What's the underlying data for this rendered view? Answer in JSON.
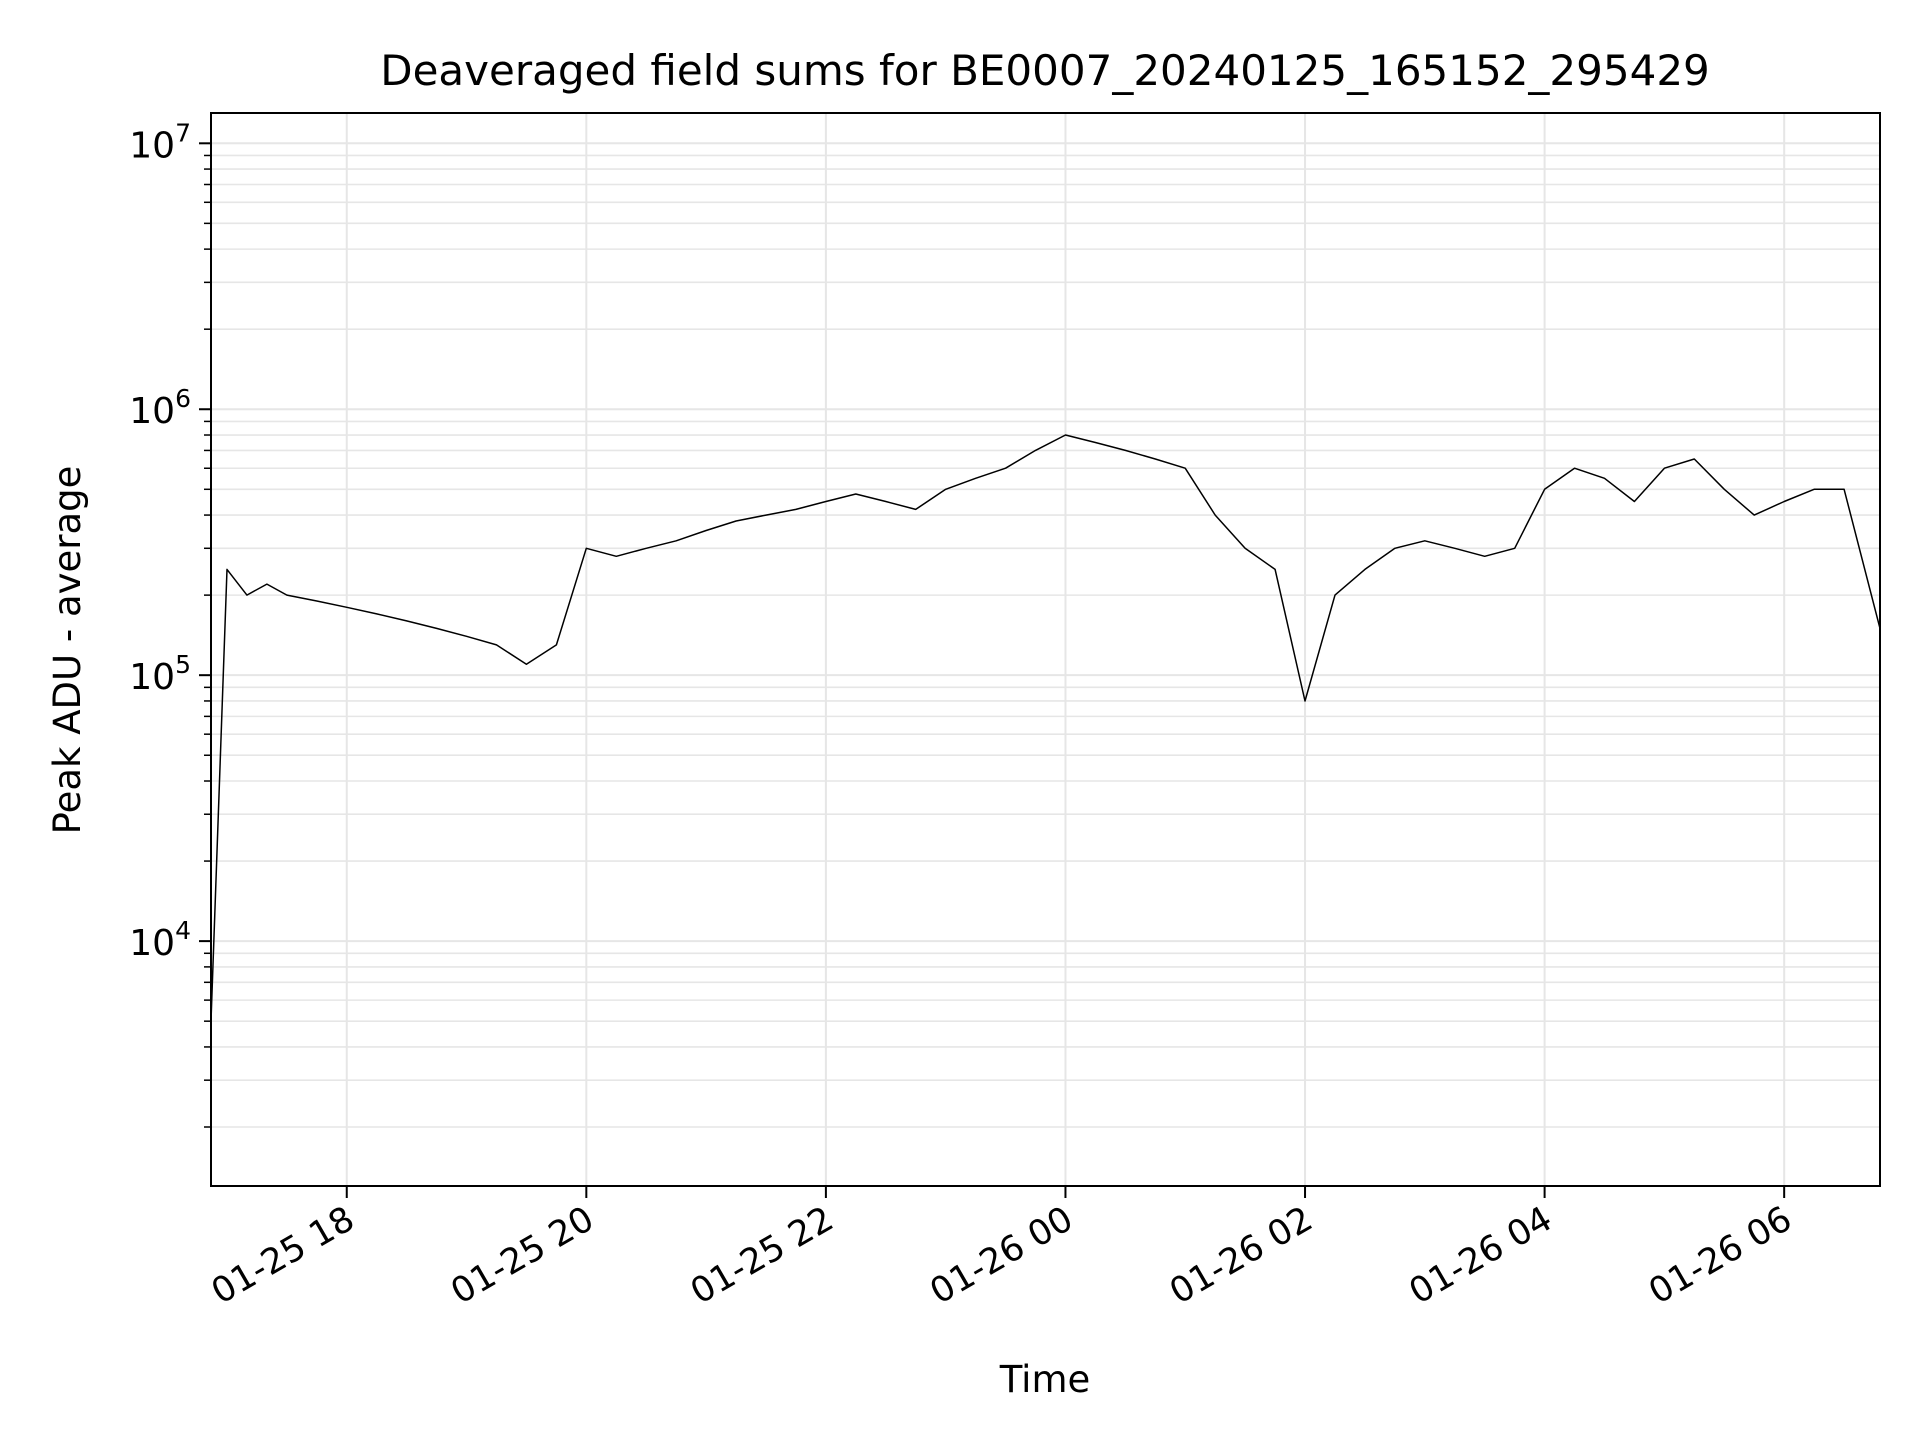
{
  "chart_data": {
    "type": "line",
    "title": "Deaveraged field sums for BE0007_20240125_165152_295429",
    "xlabel": "Time",
    "ylabel": "Peak ADU - average",
    "yscale": "log",
    "ylim": [
      1200,
      13000000
    ],
    "xlim": [
      "2024-01-25 16:52",
      "2024-01-26 06:48"
    ],
    "grid": true,
    "line_color": "#000000",
    "grid_color": "#e6e6e6",
    "x_ticks": [
      {
        "value": "2024-01-25 18:00",
        "label": "01-25 18"
      },
      {
        "value": "2024-01-25 20:00",
        "label": "01-25 20"
      },
      {
        "value": "2024-01-25 22:00",
        "label": "01-25 22"
      },
      {
        "value": "2024-01-26 00:00",
        "label": "01-26 00"
      },
      {
        "value": "2024-01-26 02:00",
        "label": "01-26 02"
      },
      {
        "value": "2024-01-26 04:00",
        "label": "01-26 04"
      },
      {
        "value": "2024-01-26 06:00",
        "label": "01-26 06"
      }
    ],
    "y_ticks": [
      {
        "value": 10000,
        "label": "10",
        "exp": "4"
      },
      {
        "value": 100000,
        "label": "10",
        "exp": "5"
      },
      {
        "value": 1000000,
        "label": "10",
        "exp": "6"
      },
      {
        "value": 10000000,
        "label": "10",
        "exp": "7"
      }
    ],
    "series": [
      {
        "x": [
          "2024-01-25 16:52",
          "2024-01-25 17:00",
          "2024-01-25 17:10",
          "2024-01-25 17:20",
          "2024-01-25 17:30",
          "2024-01-25 17:45",
          "2024-01-25 18:00",
          "2024-01-25 18:15",
          "2024-01-25 18:30",
          "2024-01-25 18:45",
          "2024-01-25 19:00",
          "2024-01-25 19:15",
          "2024-01-25 19:30",
          "2024-01-25 19:45",
          "2024-01-25 20:00",
          "2024-01-25 20:15",
          "2024-01-25 20:30",
          "2024-01-25 20:45",
          "2024-01-25 21:00",
          "2024-01-25 21:15",
          "2024-01-25 21:30",
          "2024-01-25 21:45",
          "2024-01-25 22:00",
          "2024-01-25 22:15",
          "2024-01-25 22:30",
          "2024-01-25 22:45",
          "2024-01-25 23:00",
          "2024-01-25 23:15",
          "2024-01-25 23:30",
          "2024-01-25 23:45",
          "2024-01-26 00:00",
          "2024-01-26 00:15",
          "2024-01-26 00:30",
          "2024-01-26 00:45",
          "2024-01-26 01:00",
          "2024-01-26 01:15",
          "2024-01-26 01:30",
          "2024-01-26 01:45",
          "2024-01-26 02:00",
          "2024-01-26 02:15",
          "2024-01-26 02:30",
          "2024-01-26 02:45",
          "2024-01-26 03:00",
          "2024-01-26 03:15",
          "2024-01-26 03:30",
          "2024-01-26 03:45",
          "2024-01-26 04:00",
          "2024-01-26 04:15",
          "2024-01-26 04:30",
          "2024-01-26 04:45",
          "2024-01-26 05:00",
          "2024-01-26 05:15",
          "2024-01-26 05:30",
          "2024-01-26 05:45",
          "2024-01-26 06:00",
          "2024-01-26 06:15",
          "2024-01-26 06:30",
          "2024-01-26 06:48"
        ],
        "values": [
          5000,
          250000,
          200000,
          220000,
          200000,
          190000,
          180000,
          170000,
          160000,
          150000,
          140000,
          130000,
          110000,
          130000,
          300000,
          280000,
          300000,
          320000,
          350000,
          380000,
          400000,
          420000,
          450000,
          480000,
          450000,
          420000,
          500000,
          550000,
          600000,
          700000,
          800000,
          750000,
          700000,
          650000,
          600000,
          400000,
          300000,
          250000,
          80000,
          200000,
          250000,
          300000,
          320000,
          300000,
          280000,
          300000,
          500000,
          600000,
          550000,
          450000,
          600000,
          650000,
          500000,
          400000,
          450000,
          500000,
          500000,
          150000
        ]
      }
    ]
  }
}
